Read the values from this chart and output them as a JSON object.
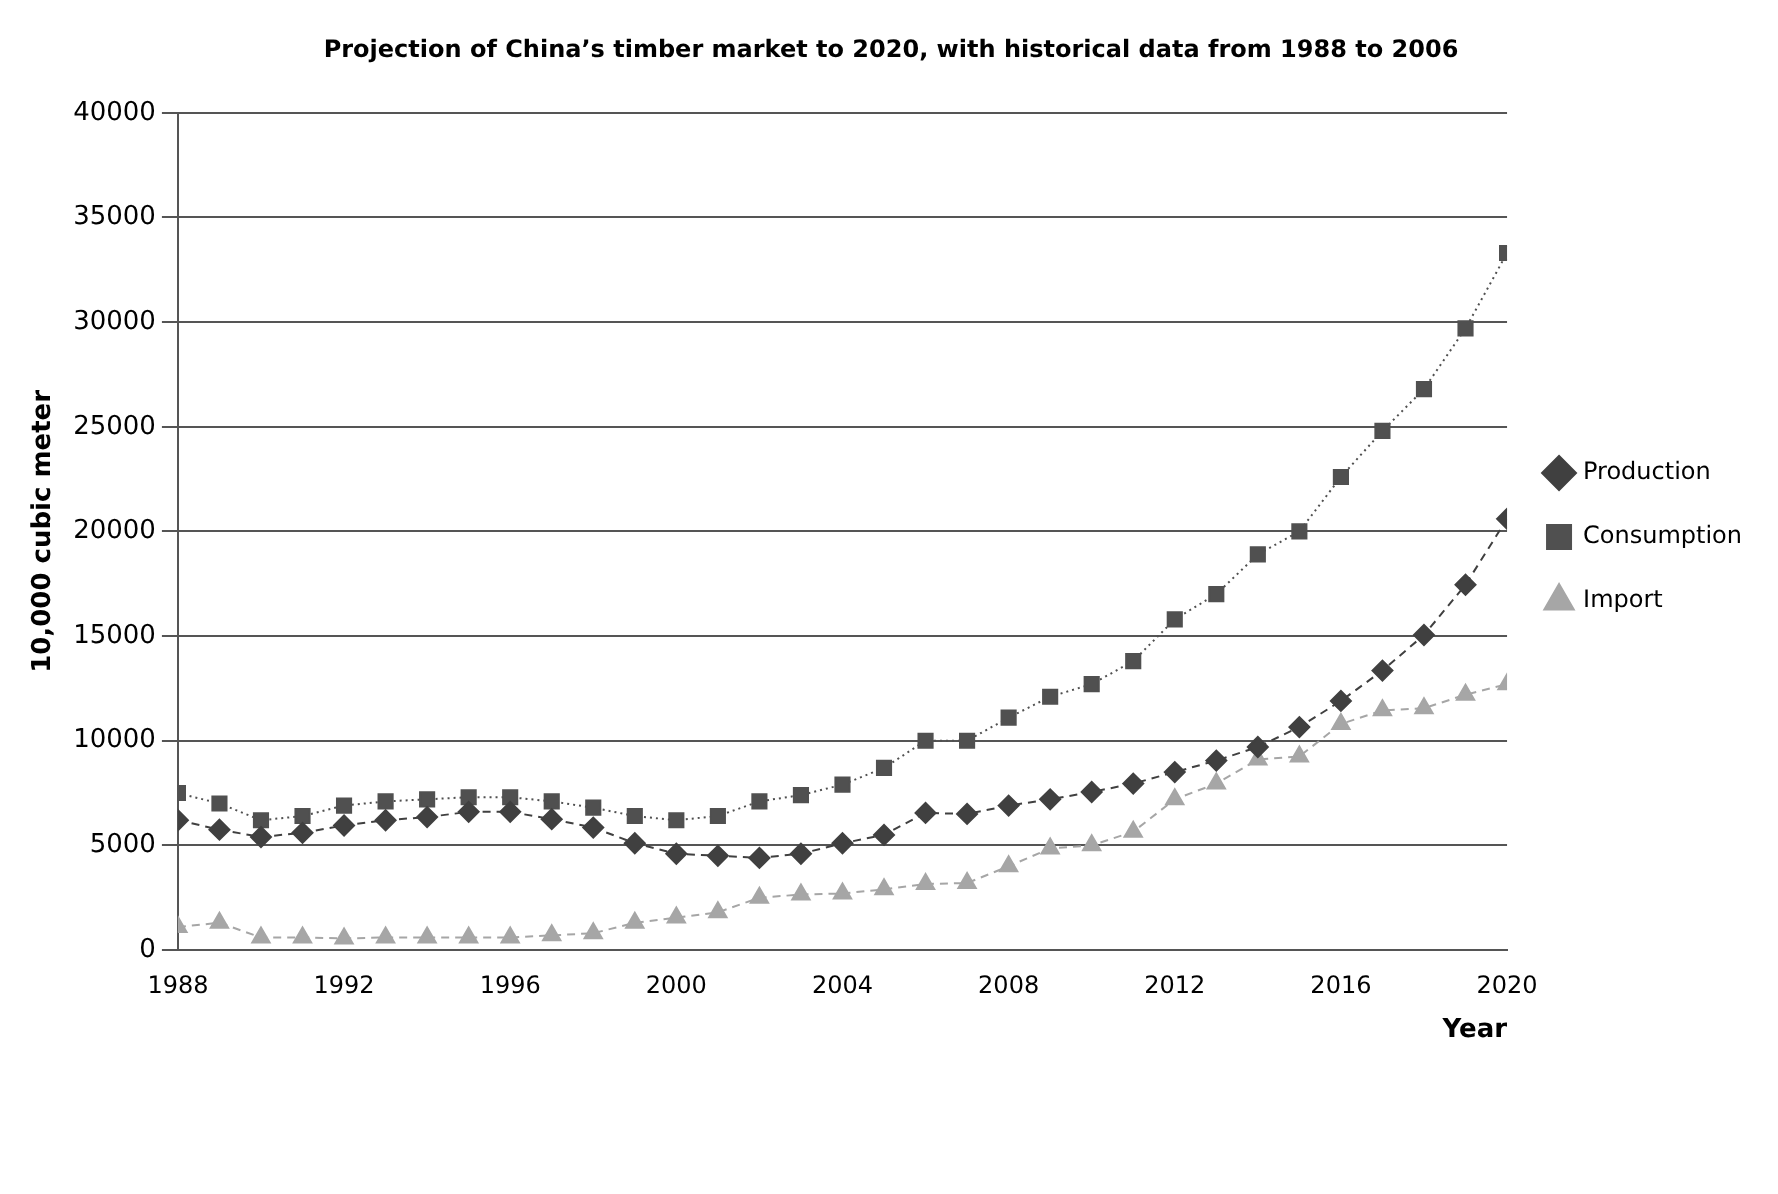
{
  "chart_data": {
    "type": "line",
    "title": "Projection of China’s timber market to 2020, with historical data from 1988 to 2006",
    "xlabel": "Year",
    "ylabel": "10,000 cubic meter",
    "x": [
      1988,
      1989,
      1990,
      1991,
      1992,
      1993,
      1994,
      1995,
      1996,
      1997,
      1998,
      1999,
      2000,
      2001,
      2002,
      2003,
      2004,
      2005,
      2006,
      2007,
      2008,
      2009,
      2010,
      2011,
      2012,
      2013,
      2014,
      2015,
      2016,
      2017,
      2018,
      2019,
      2020
    ],
    "xlim": [
      1988,
      2020
    ],
    "xticks": [
      1988,
      1992,
      1996,
      2000,
      2004,
      2008,
      2012,
      2016,
      2020
    ],
    "ylim": [
      0,
      40000
    ],
    "yticks": [
      0,
      5000,
      10000,
      15000,
      20000,
      25000,
      30000,
      35000,
      40000
    ],
    "grid": "y",
    "legend": "right",
    "series": [
      {
        "name": "Production",
        "color": "#404040",
        "marker": "diamond",
        "line_style": "dashed",
        "values": [
          6200,
          5750,
          5400,
          5600,
          5950,
          6200,
          6350,
          6600,
          6600,
          6250,
          5850,
          5100,
          4600,
          4500,
          4400,
          4600,
          5100,
          5500,
          6550,
          6500,
          6900,
          7200,
          7550,
          7950,
          8500,
          9050,
          9700,
          10650,
          11900,
          13350,
          15050,
          17450,
          20600
        ]
      },
      {
        "name": "Consumption",
        "color": "#505050",
        "marker": "square",
        "line_style": "dotted",
        "values": [
          7500,
          7000,
          6200,
          6400,
          6900,
          7100,
          7200,
          7300,
          7300,
          7100,
          6800,
          6400,
          6200,
          6400,
          7100,
          7400,
          7900,
          8700,
          10000,
          10000,
          11100,
          12100,
          12700,
          13800,
          15800,
          17000,
          18900,
          20000,
          22600,
          24800,
          26800,
          29700,
          33300
        ]
      },
      {
        "name": "Import",
        "color": "#a6a6a6",
        "marker": "triangle",
        "line_style": "dashed",
        "values": [
          1100,
          1300,
          600,
          600,
          550,
          600,
          600,
          600,
          600,
          700,
          800,
          1300,
          1550,
          1800,
          2500,
          2650,
          2700,
          2900,
          3150,
          3200,
          4000,
          4850,
          5000,
          5650,
          7200,
          7950,
          9100,
          9250,
          10800,
          11450,
          11550,
          12200,
          12700
        ]
      }
    ]
  }
}
